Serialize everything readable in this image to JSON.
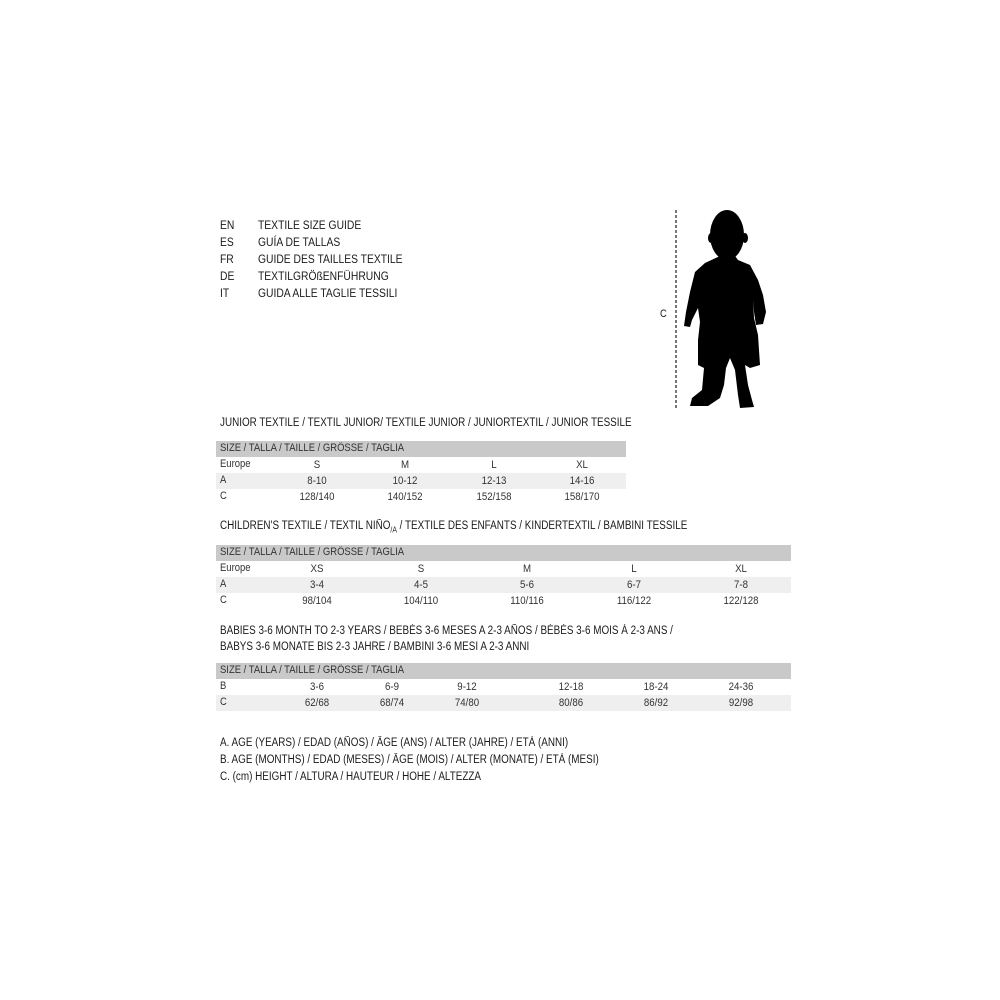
{
  "titles": [
    {
      "code": "EN",
      "text": "TEXTILE SIZE GUIDE"
    },
    {
      "code": "ES",
      "text": "GUÍA DE TALLAS"
    },
    {
      "code": "FR",
      "text": "GUIDE DES TAILLES TEXTILE"
    },
    {
      "code": "DE",
      "text": "TEXTILGRÖßENFÜHRUNG"
    },
    {
      "code": "IT",
      "text": "GUIDA ALLE TAGLIE TESSILI"
    }
  ],
  "figure": {
    "label": "C"
  },
  "junior": {
    "heading": "JUNIOR TEXTILE / TEXTIL JUNIOR/ TEXTILE JUNIOR / JUNIORTEXTIL / JUNIOR TESSILE",
    "header": "SIZE / TALLA / TAILLE / GRÖSSE / TAGLIA",
    "rows": [
      {
        "label": "Europe",
        "values": [
          "S",
          "M",
          "L",
          "XL"
        ]
      },
      {
        "label": "A",
        "values": [
          "8-10",
          "10-12",
          "12-13",
          "14-16"
        ]
      },
      {
        "label": "C",
        "values": [
          "128/140",
          "140/152",
          "152/158",
          "158/170"
        ]
      }
    ]
  },
  "children": {
    "heading_pre": "CHILDREN'S TEXTILE / TEXTIL NIÑO",
    "heading_sub": "/A",
    "heading_post": " / TEXTILE DES ENFANTS / KINDERTEXTIL / BAMBINI TESSILE",
    "header": "SIZE / TALLA / TAILLE / GRÖSSE / TAGLIA",
    "rows": [
      {
        "label": "Europe",
        "values": [
          "XS",
          "S",
          "M",
          "L",
          "XL"
        ]
      },
      {
        "label": "A",
        "values": [
          "3-4",
          "4-5",
          "5-6",
          "6-7",
          "7-8"
        ]
      },
      {
        "label": "C",
        "values": [
          "98/104",
          "104/110",
          "110/116",
          "116/122",
          "122/128"
        ]
      }
    ]
  },
  "babies": {
    "heading_line1": "BABIES 3-6 MONTH TO 2-3 YEARS / BEBÉS 3-6 MESES A 2-3 AÑOS / BÉBÉS 3-6 MOIS À 2-3 ANS /",
    "heading_line2": "BABYS 3-6 MONATE BIS 2-3 JAHRE / BAMBINI 3-6 MESI A 2-3 ANNI",
    "header": "SIZE / TALLA / TAILLE / GRÖSSE / TAGLIA",
    "rows": [
      {
        "label": "B",
        "values": [
          "3-6",
          "6-9",
          "9-12",
          "12-18",
          "18-24",
          "24-36"
        ]
      },
      {
        "label": "C",
        "values": [
          "62/68",
          "68/74",
          "74/80",
          "80/86",
          "86/92",
          "92/98"
        ]
      }
    ]
  },
  "legend": [
    "A. AGE (YEARS) / EDAD (AÑOS) / ÂGE (ANS) / ALTER (JAHRE) / ETÀ (ANNI)",
    "B. AGE (MONTHS) / EDAD (MESES) / ÂGE (MOIS) / ALTER (MONATE) / ETÀ (MESI)",
    "C. (cm) HEIGHT / ALTURA / HAUTEUR / HÖHE / ALTEZZA"
  ]
}
